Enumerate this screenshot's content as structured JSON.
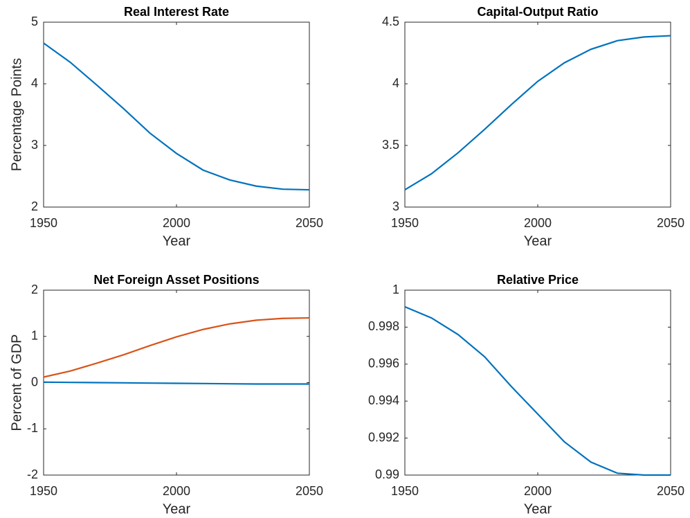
{
  "chart_data": [
    {
      "type": "line",
      "title": "Real Interest Rate",
      "xlabel": "Year",
      "ylabel": "Percentage Points",
      "x": [
        1950,
        1960,
        1970,
        1980,
        1990,
        2000,
        2010,
        2020,
        2030,
        2040,
        2050
      ],
      "series": [
        {
          "color": "#0072BD",
          "values": [
            4.66,
            4.35,
            3.98,
            3.6,
            3.2,
            2.87,
            2.6,
            2.44,
            2.34,
            2.29,
            2.28
          ]
        }
      ],
      "xlim": [
        1950,
        2050
      ],
      "xticks": [
        1950,
        2000,
        2050
      ],
      "ylim": [
        2,
        5
      ],
      "yticks": [
        2,
        3,
        4,
        5
      ]
    },
    {
      "type": "line",
      "title": "Capital-Output Ratio",
      "xlabel": "Year",
      "x": [
        1950,
        1960,
        1970,
        1980,
        1990,
        2000,
        2010,
        2020,
        2030,
        2040,
        2050
      ],
      "series": [
        {
          "color": "#0072BD",
          "values": [
            3.14,
            3.27,
            3.44,
            3.63,
            3.83,
            4.02,
            4.17,
            4.28,
            4.35,
            4.38,
            4.39
          ]
        }
      ],
      "xlim": [
        1950,
        2050
      ],
      "xticks": [
        1950,
        2000,
        2050
      ],
      "ylim": [
        3,
        4.5
      ],
      "yticks": [
        3,
        3.5,
        4,
        4.5
      ]
    },
    {
      "type": "line",
      "title": "Net Foreign Asset Positions",
      "xlabel": "Year",
      "ylabel": "Percent of GDP",
      "x": [
        1950,
        1960,
        1970,
        1980,
        1990,
        2000,
        2010,
        2020,
        2030,
        2040,
        2050
      ],
      "series": [
        {
          "color": "#0072BD",
          "values": [
            0.01,
            0.005,
            0,
            -0.005,
            -0.01,
            -0.015,
            -0.02,
            -0.025,
            -0.03,
            -0.03,
            -0.03
          ]
        },
        {
          "color": "#D95319",
          "values": [
            0.12,
            0.25,
            0.42,
            0.6,
            0.8,
            0.99,
            1.15,
            1.27,
            1.35,
            1.39,
            1.4
          ]
        }
      ],
      "xlim": [
        1950,
        2050
      ],
      "xticks": [
        1950,
        2000,
        2050
      ],
      "ylim": [
        -2,
        2
      ],
      "yticks": [
        -2,
        -1,
        0,
        1,
        2
      ]
    },
    {
      "type": "line",
      "title": "Relative Price",
      "xlabel": "Year",
      "x": [
        1950,
        1960,
        1970,
        1980,
        1990,
        2000,
        2010,
        2020,
        2030,
        2040,
        2050
      ],
      "series": [
        {
          "color": "#0072BD",
          "values": [
            0.9991,
            0.9985,
            0.9976,
            0.9964,
            0.9948,
            0.9933,
            0.9918,
            0.9907,
            0.9901,
            0.99,
            0.99
          ]
        }
      ],
      "xlim": [
        1950,
        2050
      ],
      "xticks": [
        1950,
        2000,
        2050
      ],
      "ylim": [
        0.99,
        1
      ],
      "yticks": [
        0.99,
        0.992,
        0.994,
        0.996,
        0.998,
        1
      ]
    }
  ]
}
